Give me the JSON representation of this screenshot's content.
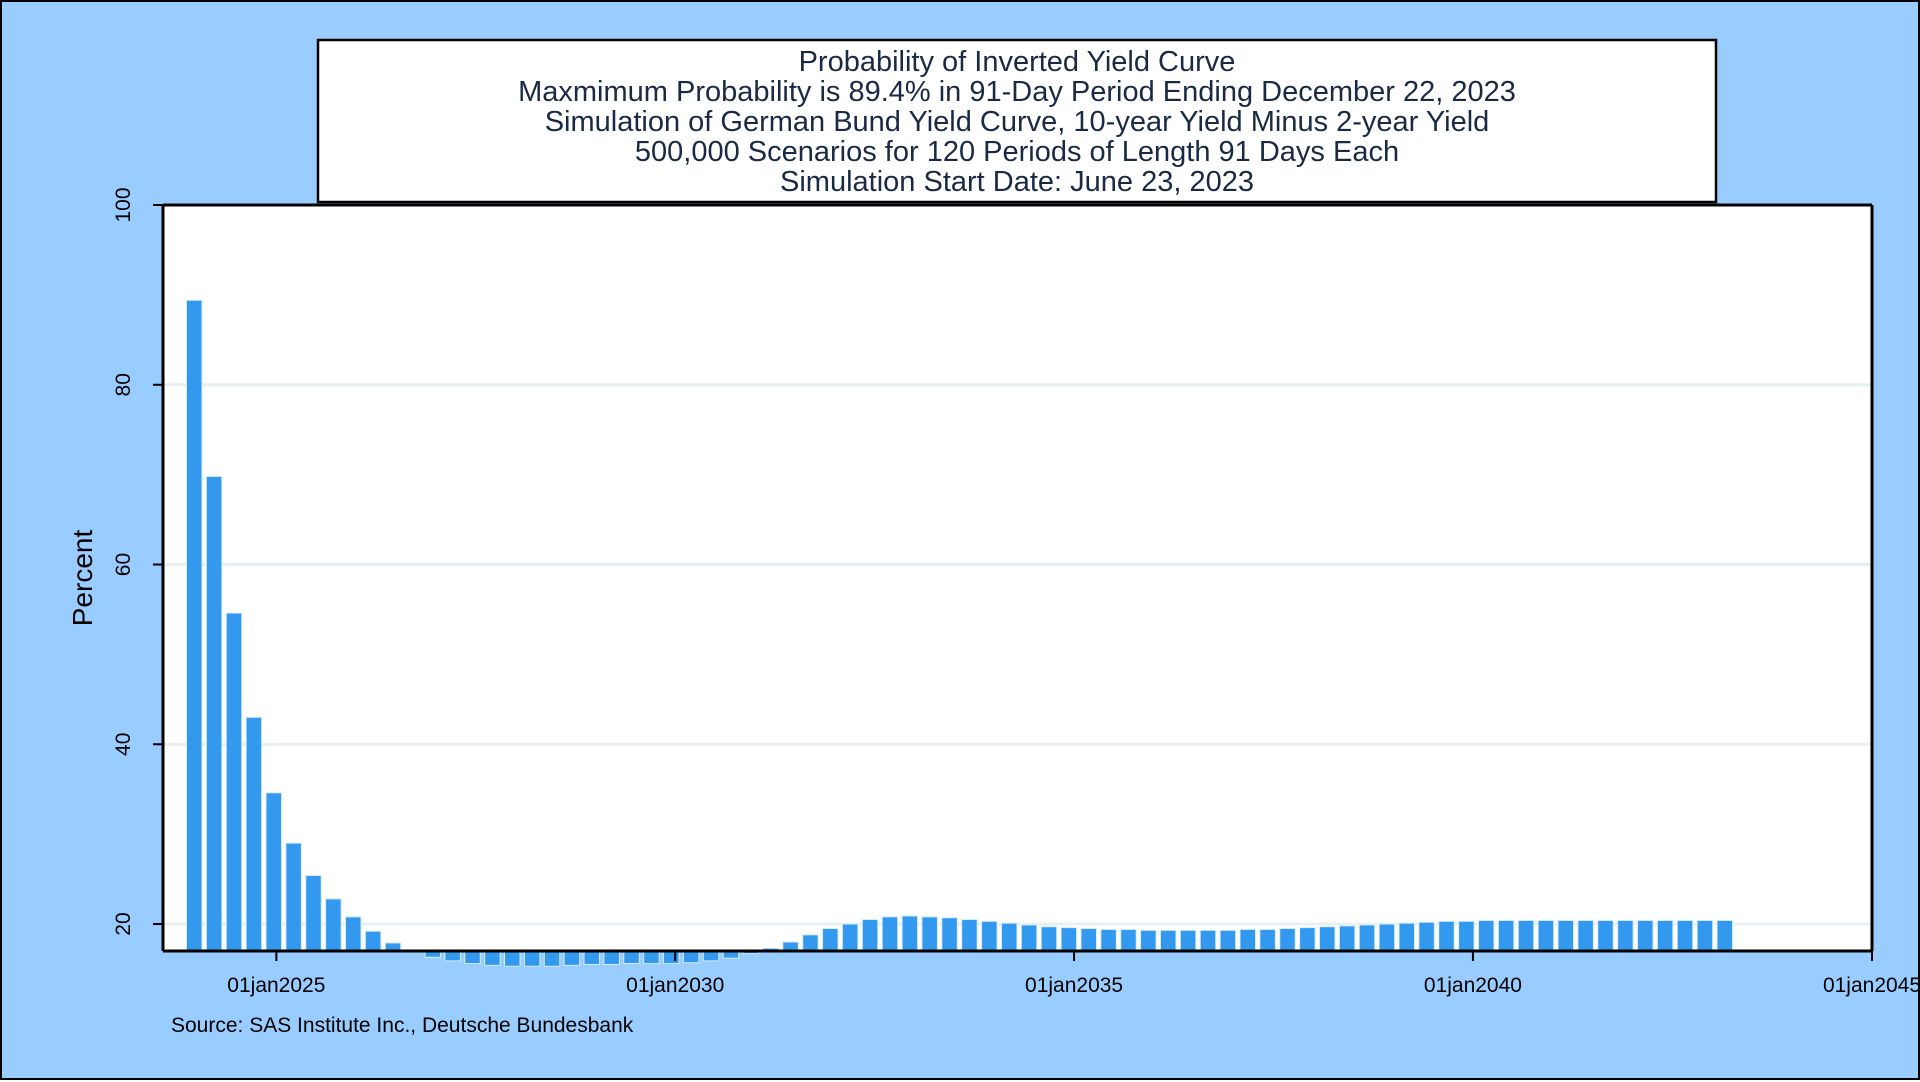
{
  "chart_data": {
    "type": "bar",
    "title_lines": [
      "Probability of Inverted Yield Curve",
      "Maxmimum Probability is 89.4% in 91-Day Period Ending December 22, 2023",
      "Simulation of German Bund Yield Curve, 10-year Yield Minus 2-year Yield",
      "500,000 Scenarios for 120 Periods of Length 91 Days Each",
      "Simulation Start Date: June 23, 2023"
    ],
    "ylabel": "Percent",
    "xlabel": "",
    "ylim": [
      17,
      100
    ],
    "yticks": [
      20,
      40,
      60,
      80,
      100
    ],
    "xlim": [
      "2023-08-01",
      "2045-01-01"
    ],
    "xticks": [
      "2025-01-01",
      "2030-01-01",
      "2035-01-01",
      "2040-01-01",
      "2045-01-01"
    ],
    "xtick_labels": [
      "01jan2025",
      "01jan2030",
      "01jan2035",
      "01jan2040",
      "01jan2045"
    ],
    "grid": true,
    "bar_color": "#3399ee",
    "source": "Source: SAS Institute Inc., Deutsche Bundesbank",
    "first_period_end": "2023-12-22",
    "period_days": 91,
    "values": [
      89.4,
      69.8,
      54.6,
      43.0,
      34.6,
      29.0,
      25.4,
      22.8,
      20.8,
      19.2,
      17.9,
      17.0,
      16.3,
      15.9,
      15.6,
      15.4,
      15.3,
      15.3,
      15.3,
      15.4,
      15.5,
      15.5,
      15.6,
      15.6,
      15.6,
      15.7,
      15.9,
      16.2,
      16.7,
      17.3,
      18.0,
      18.8,
      19.5,
      20.0,
      20.5,
      20.8,
      20.9,
      20.8,
      20.7,
      20.5,
      20.3,
      20.1,
      19.9,
      19.7,
      19.6,
      19.5,
      19.4,
      19.4,
      19.3,
      19.3,
      19.3,
      19.3,
      19.3,
      19.4,
      19.4,
      19.5,
      19.6,
      19.7,
      19.8,
      19.9,
      20.0,
      20.1,
      20.2,
      20.3,
      20.3,
      20.4,
      20.4,
      20.4,
      20.4,
      20.4,
      20.4,
      20.4,
      20.4,
      20.4,
      20.4,
      20.4,
      20.4,
      20.4
    ]
  },
  "colors": {
    "background": "#99ccff",
    "plot_background": "#ffffff",
    "grid": "#e8f0f4",
    "title_text": "#1a2a44"
  }
}
